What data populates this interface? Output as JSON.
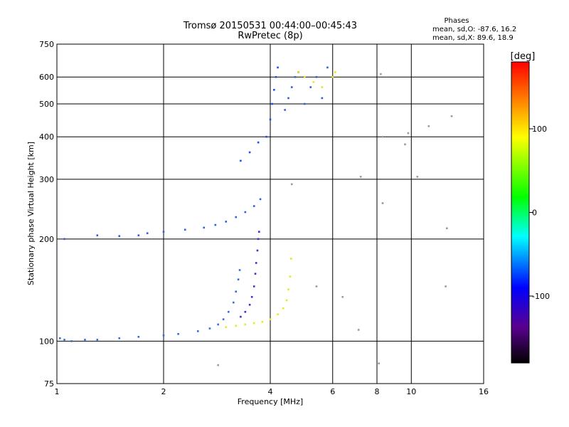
{
  "header": {
    "title_line1": "Tromsø 20150531 00:44:00–00:45:43",
    "title_line2": "RwPretec (8p)"
  },
  "stats": {
    "heading": "Phases",
    "line_o": "mean, sd,O: -87.6, 16.2",
    "line_x": "mean, sd,X:  89.6, 18.9"
  },
  "chart_data": {
    "type": "scatter",
    "title": "Tromsø 20150531 00:44:00–00:45:43",
    "subtitle": "RwPretec (8p)",
    "xlabel": "Frequency [MHz]",
    "ylabel": "Stationary phase Virtual Height [km]",
    "x_scale": "log",
    "y_scale": "log",
    "xlim": [
      1,
      16
    ],
    "ylim": [
      75,
      750
    ],
    "x_ticks": [
      1,
      2,
      4,
      6,
      8,
      10,
      16
    ],
    "x_tick_labels": [
      "1",
      "2",
      "4",
      "6",
      "8",
      "10",
      "16"
    ],
    "y_ticks": [
      75,
      100,
      200,
      300,
      400,
      500,
      600,
      750
    ],
    "y_tick_labels": [
      "75",
      "100",
      "200",
      "300",
      "400",
      "500",
      "600",
      "750"
    ],
    "grid": true,
    "colorbar": {
      "label": "[deg]",
      "range": [
        -180,
        180
      ],
      "ticks": [
        100,
        0,
        -100
      ],
      "tick_labels": [
        "100",
        "0",
        "-100"
      ],
      "colors": [
        "#000000",
        "#5a0090",
        "#0000ff",
        "#00ffff",
        "#00ff00",
        "#ffff00",
        "#ff0000"
      ]
    },
    "series": [
      {
        "color": "#2f6fdc",
        "x": [
          1.02,
          1.05,
          1.1,
          1.2,
          1.3,
          1.5,
          1.7,
          2.0,
          2.2,
          2.5,
          2.7,
          2.85,
          2.95,
          3.05,
          3.15,
          3.2,
          3.25,
          3.28
        ],
        "y": [
          102,
          101,
          100,
          101,
          101,
          102,
          103,
          104,
          105,
          107,
          109,
          112,
          116,
          122,
          130,
          140,
          152,
          162
        ]
      },
      {
        "color": "#3a2fd0",
        "x": [
          3.3,
          3.4,
          3.5,
          3.55,
          3.6,
          3.63,
          3.65,
          3.68,
          3.7,
          3.72
        ],
        "y": [
          118,
          122,
          128,
          135,
          145,
          158,
          170,
          185,
          200,
          210
        ]
      },
      {
        "color": "#e8e820",
        "x": [
          3.0,
          3.2,
          3.4,
          3.6,
          3.8,
          4.0,
          4.2,
          4.35,
          4.45,
          4.5,
          4.55,
          4.58
        ],
        "y": [
          110,
          111,
          112,
          113,
          114,
          116,
          120,
          125,
          132,
          142,
          155,
          175
        ]
      },
      {
        "color": "#2f5fe0",
        "x": [
          1.05,
          1.3,
          1.5,
          1.7,
          1.8,
          2.0,
          2.3,
          2.6,
          2.8,
          3.0,
          3.2,
          3.4,
          3.6,
          3.75
        ],
        "y": [
          200,
          205,
          204,
          205,
          208,
          210,
          213,
          216,
          220,
          225,
          232,
          240,
          250,
          262
        ]
      },
      {
        "color": "#1f4fe8",
        "x": [
          3.3,
          3.5,
          3.7,
          3.9,
          4.0,
          4.05,
          4.1,
          4.15,
          4.2
        ],
        "y": [
          340,
          360,
          385,
          400,
          450,
          500,
          550,
          600,
          640
        ]
      },
      {
        "color": "#3060e0",
        "x": [
          4.4,
          4.5,
          4.6,
          4.7,
          4.8,
          5.0,
          5.2,
          5.4,
          5.6,
          5.8
        ],
        "y": [
          480,
          520,
          560,
          600,
          620,
          500,
          560,
          600,
          520,
          640
        ]
      },
      {
        "color": "#f0e020",
        "x": [
          4.8,
          5.0,
          5.3,
          5.6,
          6.0,
          6.1
        ],
        "y": [
          620,
          600,
          580,
          560,
          600,
          620
        ]
      },
      {
        "color": "#9a9a9a",
        "x": [
          2.85,
          4.6,
          5.4,
          6.4,
          7.1,
          7.2,
          8.1,
          8.2,
          8.3,
          8.3,
          9.6,
          9.8,
          10.4,
          11.2,
          12.5,
          12.6,
          13.0
        ],
        "y": [
          85,
          290,
          145,
          135,
          108,
          305,
          86,
          612,
          400,
          255,
          380,
          410,
          305,
          430,
          145,
          215,
          460
        ]
      }
    ]
  }
}
